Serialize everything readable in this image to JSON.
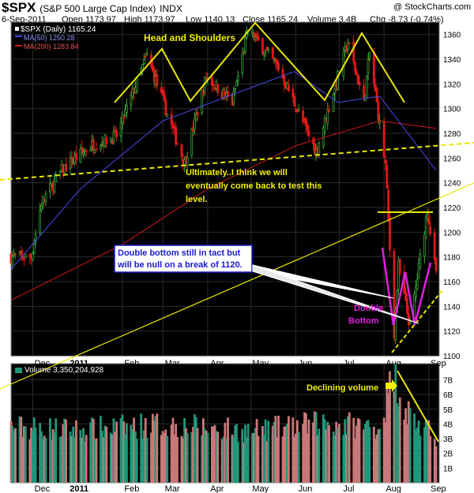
{
  "header": {
    "symbol": "$SPX",
    "description": "(S&P 500 Large Cap Index)",
    "exchange": "INDX",
    "watermark": "@ StockCharts.com",
    "date": "6-Sep-2011",
    "open": "Open 1173.97",
    "high": "High 1173.97",
    "low": "Low 1140.13",
    "close": "Close 1165.24",
    "volume": "Volume 3.4B",
    "change": "Chg -8.73 (-0.74%)"
  },
  "legend": {
    "price": "$SPX (Daily) 1165.24",
    "ma50": "MA(50) 1250.28",
    "ma200": "MA(200) 1283.84",
    "volume": "Volume 3,350,204,928"
  },
  "annotations": {
    "head_shoulders": "Head and Shoulders",
    "ultimately_1": "Ultimately..I think we will",
    "ultimately_2": "eventually come back to test this",
    "ultimately_3": "level.",
    "double_bottom_box_1": "Double bottom still in tact but",
    "double_bottom_box_2": "will be null on a break of 1120.",
    "double_bottom_1": "Double",
    "double_bottom_2": "Bottom",
    "declining_volume": "Declining volume"
  },
  "colors": {
    "up": "#3aa83a",
    "down": "#e01818",
    "ma50": "#4a4aee",
    "ma200": "#cc1a1a",
    "trend": "#e8e800",
    "pink": "#e020e0",
    "vol_up": "#22967a",
    "vol_down": "#c87878",
    "background": "#000000",
    "grid": "#2b2b2b",
    "panel_border": "#8a8a8a"
  },
  "chart_data": {
    "type": "line",
    "title": "$SPX (Daily)",
    "ylim": [
      1100,
      1370
    ],
    "yticks": [
      1100,
      1120,
      1140,
      1160,
      1180,
      1200,
      1220,
      1240,
      1260,
      1280,
      1300,
      1320,
      1340,
      1360
    ],
    "xticks": [
      "Dec",
      "2011",
      "Feb",
      "Mar",
      "Apr",
      "May",
      "Jun",
      "Jul",
      "Aug",
      "Sep"
    ],
    "close_anchors": [
      {
        "date": "2010-11-16",
        "value": 1180
      },
      {
        "date": "2010-11-30",
        "value": 1180
      },
      {
        "date": "2010-12-07",
        "value": 1224
      },
      {
        "date": "2010-12-21",
        "value": 1250
      },
      {
        "date": "2011-01-10",
        "value": 1270
      },
      {
        "date": "2011-01-28",
        "value": 1278
      },
      {
        "date": "2011-02-18",
        "value": 1343
      },
      {
        "date": "2011-03-01",
        "value": 1306
      },
      {
        "date": "2011-03-16",
        "value": 1256
      },
      {
        "date": "2011-03-31",
        "value": 1326
      },
      {
        "date": "2011-04-18",
        "value": 1305
      },
      {
        "date": "2011-04-29",
        "value": 1364
      },
      {
        "date": "2011-05-20",
        "value": 1333
      },
      {
        "date": "2011-06-15",
        "value": 1265
      },
      {
        "date": "2011-07-07",
        "value": 1354
      },
      {
        "date": "2011-07-18",
        "value": 1305
      },
      {
        "date": "2011-07-22",
        "value": 1345
      },
      {
        "date": "2011-08-02",
        "value": 1254
      },
      {
        "date": "2011-08-08",
        "value": 1119
      },
      {
        "date": "2011-08-11",
        "value": 1172
      },
      {
        "date": "2011-08-19",
        "value": 1123
      },
      {
        "date": "2011-08-31",
        "value": 1219
      },
      {
        "date": "2011-09-06",
        "value": 1165
      }
    ],
    "ma50_anchors": [
      {
        "date": "2010-11-16",
        "value": 1170
      },
      {
        "date": "2011-01-03",
        "value": 1235
      },
      {
        "date": "2011-03-01",
        "value": 1290
      },
      {
        "date": "2011-04-15",
        "value": 1310
      },
      {
        "date": "2011-05-31",
        "value": 1330
      },
      {
        "date": "2011-06-30",
        "value": 1305
      },
      {
        "date": "2011-07-29",
        "value": 1310
      },
      {
        "date": "2011-09-06",
        "value": 1250
      }
    ],
    "ma200_anchors": [
      {
        "date": "2010-11-16",
        "value": 1145
      },
      {
        "date": "2011-02-01",
        "value": 1190
      },
      {
        "date": "2011-04-01",
        "value": 1235
      },
      {
        "date": "2011-06-01",
        "value": 1270
      },
      {
        "date": "2011-07-29",
        "value": 1290
      },
      {
        "date": "2011-09-06",
        "value": 1284
      }
    ],
    "volume_panel": {
      "ylabel": "Volume",
      "yticks_billions": [
        1,
        2,
        3,
        4,
        5,
        6,
        7
      ],
      "ytick_labels": [
        "1B",
        "2B",
        "3B",
        "4B",
        "5B",
        "6B",
        "7B"
      ],
      "ylim_billions": [
        0,
        8.1
      ],
      "anchors": [
        {
          "date": "2010-11-16",
          "value": 4.0
        },
        {
          "date": "2011-01-03",
          "value": 3.8
        },
        {
          "date": "2011-03-01",
          "value": 4.2
        },
        {
          "date": "2011-05-02",
          "value": 3.7
        },
        {
          "date": "2011-06-20",
          "value": 4.3
        },
        {
          "date": "2011-07-29",
          "value": 4.0
        },
        {
          "date": "2011-08-05",
          "value": 6.8
        },
        {
          "date": "2011-08-08",
          "value": 8.0
        },
        {
          "date": "2011-08-15",
          "value": 5.5
        },
        {
          "date": "2011-08-26",
          "value": 4.0
        },
        {
          "date": "2011-09-06",
          "value": 3.35
        }
      ]
    }
  }
}
